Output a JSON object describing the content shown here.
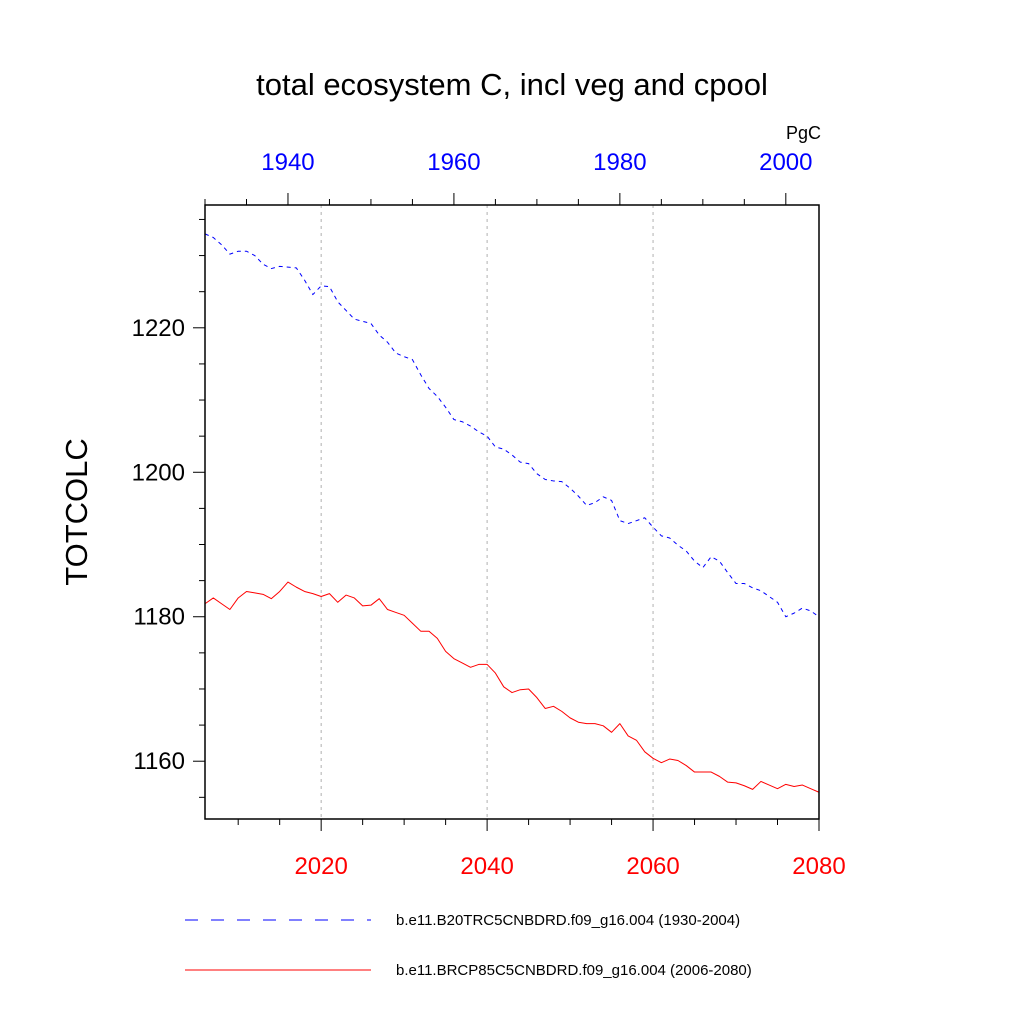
{
  "chart_data": {
    "type": "line",
    "title": "total ecosystem C, incl veg and cpool",
    "units": "PgC",
    "ylabel": "TOTCOLC",
    "ylim": [
      1152,
      1237
    ],
    "yticks": [
      1160,
      1180,
      1200,
      1220
    ],
    "bottom_axis": {
      "color": "#ff0000",
      "xlim": [
        2006,
        2080
      ],
      "ticks": [
        2020,
        2040,
        2060,
        2080
      ]
    },
    "top_axis": {
      "color": "#0000ff",
      "xlim": [
        1930,
        2004
      ],
      "ticks": [
        1940,
        1960,
        1980,
        2000
      ]
    },
    "grid": "vertical dashed at bottom-axis ticks",
    "legend_position": "bottom",
    "series": [
      {
        "name": "b.e11.B20TRC5CNBDRD.f09_g16.004 (1930-2004)",
        "axis": "top",
        "color": "#0000ff",
        "style": "dashed",
        "x": [
          1930,
          1931,
          1932,
          1933,
          1934,
          1935,
          1936,
          1937,
          1938,
          1939,
          1940,
          1941,
          1942,
          1943,
          1944,
          1945,
          1946,
          1947,
          1948,
          1949,
          1950,
          1951,
          1952,
          1953,
          1954,
          1955,
          1956,
          1957,
          1958,
          1959,
          1960,
          1961,
          1962,
          1963,
          1964,
          1965,
          1966,
          1967,
          1968,
          1969,
          1970,
          1971,
          1972,
          1973,
          1974,
          1975,
          1976,
          1977,
          1978,
          1979,
          1980,
          1981,
          1982,
          1983,
          1984,
          1985,
          1986,
          1987,
          1988,
          1989,
          1990,
          1991,
          1992,
          1993,
          1994,
          1995,
          1996,
          1997,
          1998,
          1999,
          2000,
          2001,
          2002,
          2003,
          2004
        ],
        "y": [
          1233.0,
          1232.5,
          1231.5,
          1230.2,
          1230.6,
          1230.6,
          1230.0,
          1228.8,
          1228.2,
          1228.5,
          1228.4,
          1228.3,
          1226.6,
          1224.6,
          1225.8,
          1225.7,
          1223.6,
          1222.4,
          1221.2,
          1220.9,
          1220.6,
          1219.0,
          1218.0,
          1216.5,
          1216.0,
          1215.6,
          1213.5,
          1211.6,
          1210.5,
          1209.0,
          1207.3,
          1207.0,
          1206.4,
          1205.6,
          1205.0,
          1203.5,
          1203.2,
          1202.4,
          1201.4,
          1201.2,
          1199.8,
          1199.0,
          1198.8,
          1198.7,
          1197.8,
          1196.7,
          1195.4,
          1195.8,
          1196.6,
          1196.1,
          1193.3,
          1192.9,
          1193.3,
          1193.7,
          1192.4,
          1191.2,
          1190.9,
          1189.9,
          1189.1,
          1187.7,
          1186.8,
          1188.3,
          1187.7,
          1186.1,
          1184.6,
          1184.6,
          1184.0,
          1183.6,
          1182.8,
          1182.0,
          1180.0,
          1180.5,
          1181.2,
          1180.8,
          1180.0
        ]
      },
      {
        "name": "b.e11.BRCP85C5CNBDRD.f09_g16.004 (2006-2080)",
        "axis": "bottom",
        "color": "#ff0000",
        "style": "solid",
        "x": [
          2006,
          2007,
          2008,
          2009,
          2010,
          2011,
          2012,
          2013,
          2014,
          2015,
          2016,
          2017,
          2018,
          2019,
          2020,
          2021,
          2022,
          2023,
          2024,
          2025,
          2026,
          2027,
          2028,
          2029,
          2030,
          2031,
          2032,
          2033,
          2034,
          2035,
          2036,
          2037,
          2038,
          2039,
          2040,
          2041,
          2042,
          2043,
          2044,
          2045,
          2046,
          2047,
          2048,
          2049,
          2050,
          2051,
          2052,
          2053,
          2054,
          2055,
          2056,
          2057,
          2058,
          2059,
          2060,
          2061,
          2062,
          2063,
          2064,
          2065,
          2066,
          2067,
          2068,
          2069,
          2070,
          2071,
          2072,
          2073,
          2074,
          2075,
          2076,
          2077,
          2078,
          2079,
          2080
        ],
        "y": [
          1181.8,
          1182.6,
          1181.8,
          1181.0,
          1182.6,
          1183.5,
          1183.3,
          1183.1,
          1182.5,
          1183.5,
          1184.8,
          1184.1,
          1183.5,
          1183.2,
          1182.8,
          1183.2,
          1182.0,
          1183.0,
          1182.6,
          1181.5,
          1181.6,
          1182.5,
          1181.0,
          1180.6,
          1180.2,
          1179.1,
          1178.0,
          1178.0,
          1177.0,
          1175.2,
          1174.2,
          1173.6,
          1173.0,
          1173.4,
          1173.4,
          1172.2,
          1170.3,
          1169.5,
          1169.9,
          1170.0,
          1168.8,
          1167.3,
          1167.6,
          1166.9,
          1166.0,
          1165.4,
          1165.2,
          1165.2,
          1164.9,
          1164.0,
          1165.2,
          1163.5,
          1162.9,
          1161.3,
          1160.4,
          1159.8,
          1160.3,
          1160.1,
          1159.4,
          1158.5,
          1158.5,
          1158.5,
          1157.9,
          1157.1,
          1157.0,
          1156.6,
          1156.1,
          1157.2,
          1156.7,
          1156.2,
          1156.8,
          1156.5,
          1156.7,
          1156.2,
          1155.7
        ]
      }
    ]
  }
}
